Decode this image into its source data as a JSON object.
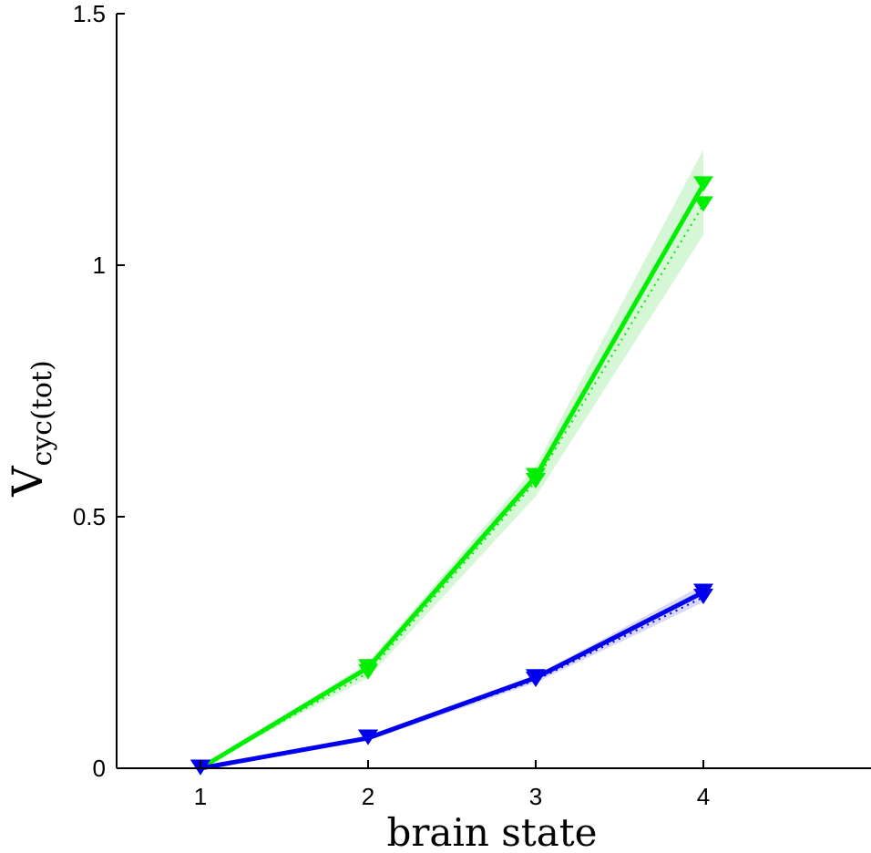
{
  "chart_data": {
    "type": "line",
    "xlabel": "brain state",
    "ylabel": {
      "main": "V",
      "sub": "cyc(tot)"
    },
    "xlim": [
      0.5,
      5.0
    ],
    "ylim": [
      0,
      1.5
    ],
    "xticks": [
      1,
      2,
      3,
      4
    ],
    "xtick_labels": [
      "1",
      "2",
      "3",
      "4"
    ],
    "yticks": [
      0,
      0.5,
      1,
      1.5
    ],
    "ytick_labels": [
      "0",
      "0.5",
      "1",
      "1.5"
    ],
    "grid": false,
    "legend": "none",
    "series": [
      {
        "color": "#00ee00",
        "band_color": "#ccf5cc",
        "marker": "triangle-down",
        "x": [
          1,
          2,
          3,
          4
        ],
        "solid": [
          0,
          0.2,
          0.58,
          1.16
        ],
        "dotted": [
          0,
          0.19,
          0.57,
          1.12
        ],
        "band_low": [
          0,
          0.18,
          0.54,
          1.06
        ],
        "band_high": [
          0,
          0.21,
          0.6,
          1.23
        ]
      },
      {
        "color": "#0000ee",
        "band_color": "#d0d0f5",
        "marker": "triangle-down",
        "x": [
          1,
          2,
          3,
          4
        ],
        "solid": [
          0,
          0.06,
          0.18,
          0.35
        ],
        "dotted": [
          0,
          0.06,
          0.175,
          0.34
        ],
        "band_low": [
          0,
          0.055,
          0.17,
          0.33
        ],
        "band_high": [
          0,
          0.065,
          0.185,
          0.365
        ]
      }
    ]
  }
}
